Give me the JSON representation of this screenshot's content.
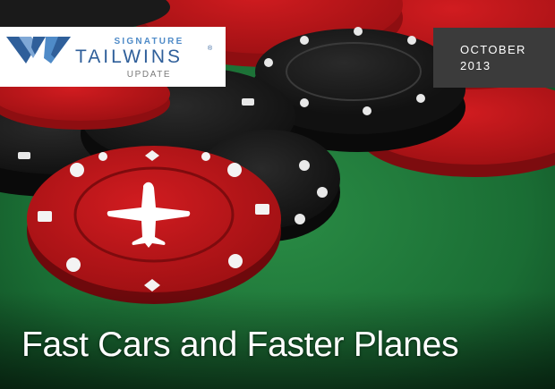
{
  "logo": {
    "signature": "SIGNATURE",
    "brand": "TAILWINS",
    "registered": "®",
    "update": "UPDATE"
  },
  "date": {
    "month": "OCTOBER",
    "year": "2013"
  },
  "headline": "Fast Cars and Faster Planes",
  "colors": {
    "felt": "#1f7a3a",
    "chip_red": "#c0141a",
    "chip_black": "#1a1a1a",
    "logo_blue": "#2f5f9a",
    "date_bg": "#3b3b3b"
  }
}
